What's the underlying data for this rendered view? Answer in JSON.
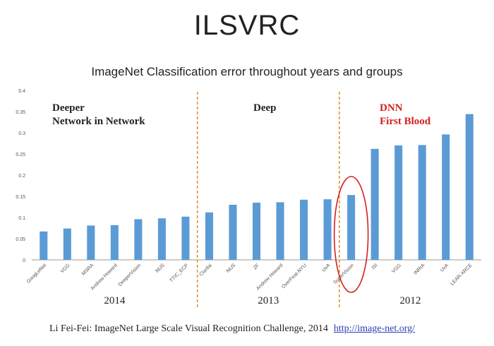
{
  "page": {
    "title": "ILSVRC",
    "caption": "Li Fei-Fei: ImageNet Large Scale Visual Recognition Challenge, 2014",
    "link": "http://image-net.org/"
  },
  "colors": {
    "bar": "#5b9bd5",
    "divider": "#e08a2c",
    "highlight": "#d42020",
    "text": "#222222",
    "axis": "#999999"
  },
  "chart_data": {
    "type": "bar",
    "title": "ImageNet Classification error throughout years and groups",
    "xlabel": "",
    "ylabel": "",
    "ylim": [
      0,
      0.4
    ],
    "yticks": [
      "0",
      "0.05",
      "0.1",
      "0.15",
      "0.2",
      "0.25",
      "0.3",
      "0.35",
      "0.4"
    ],
    "categories": [
      "GoogLeNet",
      "VGG",
      "MSRA",
      "Andrew Howard",
      "DeeperVision",
      "NUS",
      "TTIC_ECP",
      "Clarifai",
      "NUS",
      "ZF",
      "Andrew Howard",
      "OverFeat-NYU",
      "UvA",
      "SuperVision",
      "ISI",
      "VGG",
      "INRIA",
      "UvA",
      "LEAR-XRCE"
    ],
    "values": [
      0.067,
      0.074,
      0.081,
      0.082,
      0.096,
      0.098,
      0.102,
      0.112,
      0.13,
      0.135,
      0.136,
      0.142,
      0.143,
      0.153,
      0.262,
      0.27,
      0.271,
      0.296,
      0.344
    ],
    "groups": [
      {
        "year": "2014",
        "start": 0,
        "end": 6,
        "heading": [
          "Deeper",
          "Network in Network"
        ]
      },
      {
        "year": "2013",
        "start": 7,
        "end": 12,
        "heading": [
          "Deep"
        ]
      },
      {
        "year": "2012",
        "start": 13,
        "end": 18,
        "heading": [
          "DNN",
          "First Blood"
        ]
      }
    ],
    "highlighted_category": "SuperVision"
  }
}
